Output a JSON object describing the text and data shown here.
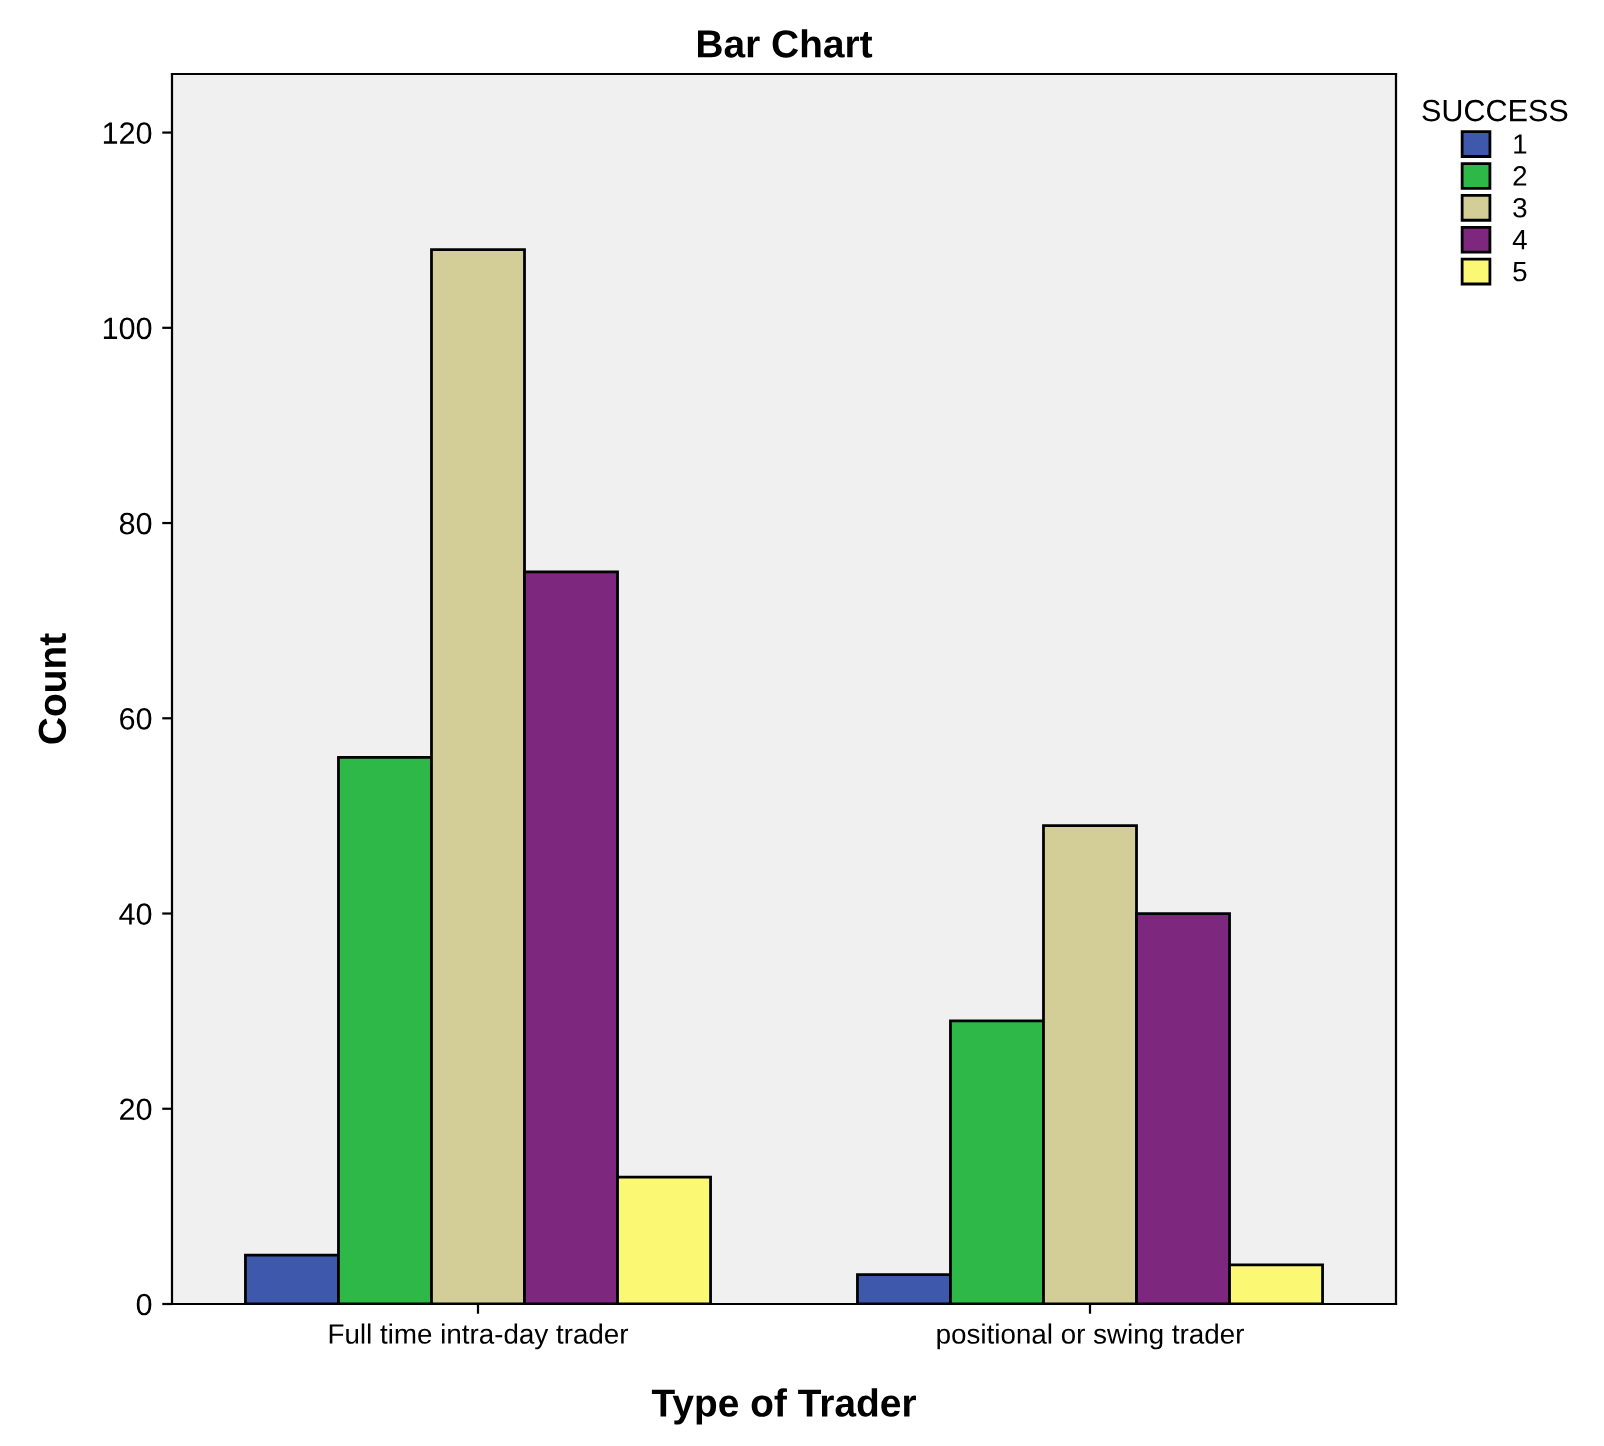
{
  "chart_data": {
    "type": "bar",
    "title": "Bar Chart",
    "xlabel": "Type of Trader",
    "ylabel": "Count",
    "legend_title": "SUCCESS",
    "categories": [
      "Full time intra-day trader",
      "positional or swing trader"
    ],
    "series": [
      {
        "name": "1",
        "color": "#3e58ac",
        "values": [
          5,
          3
        ]
      },
      {
        "name": "2",
        "color": "#2eb848",
        "values": [
          56,
          29
        ]
      },
      {
        "name": "3",
        "color": "#d3ce97",
        "values": [
          108,
          49
        ]
      },
      {
        "name": "4",
        "color": "#7e277e",
        "values": [
          75,
          40
        ]
      },
      {
        "name": "5",
        "color": "#fbf873",
        "values": [
          13,
          4
        ]
      }
    ],
    "ylim": [
      0,
      126
    ],
    "yticks": [
      0,
      20,
      40,
      60,
      80,
      100,
      120
    ],
    "grid": false,
    "legend": "top right"
  }
}
